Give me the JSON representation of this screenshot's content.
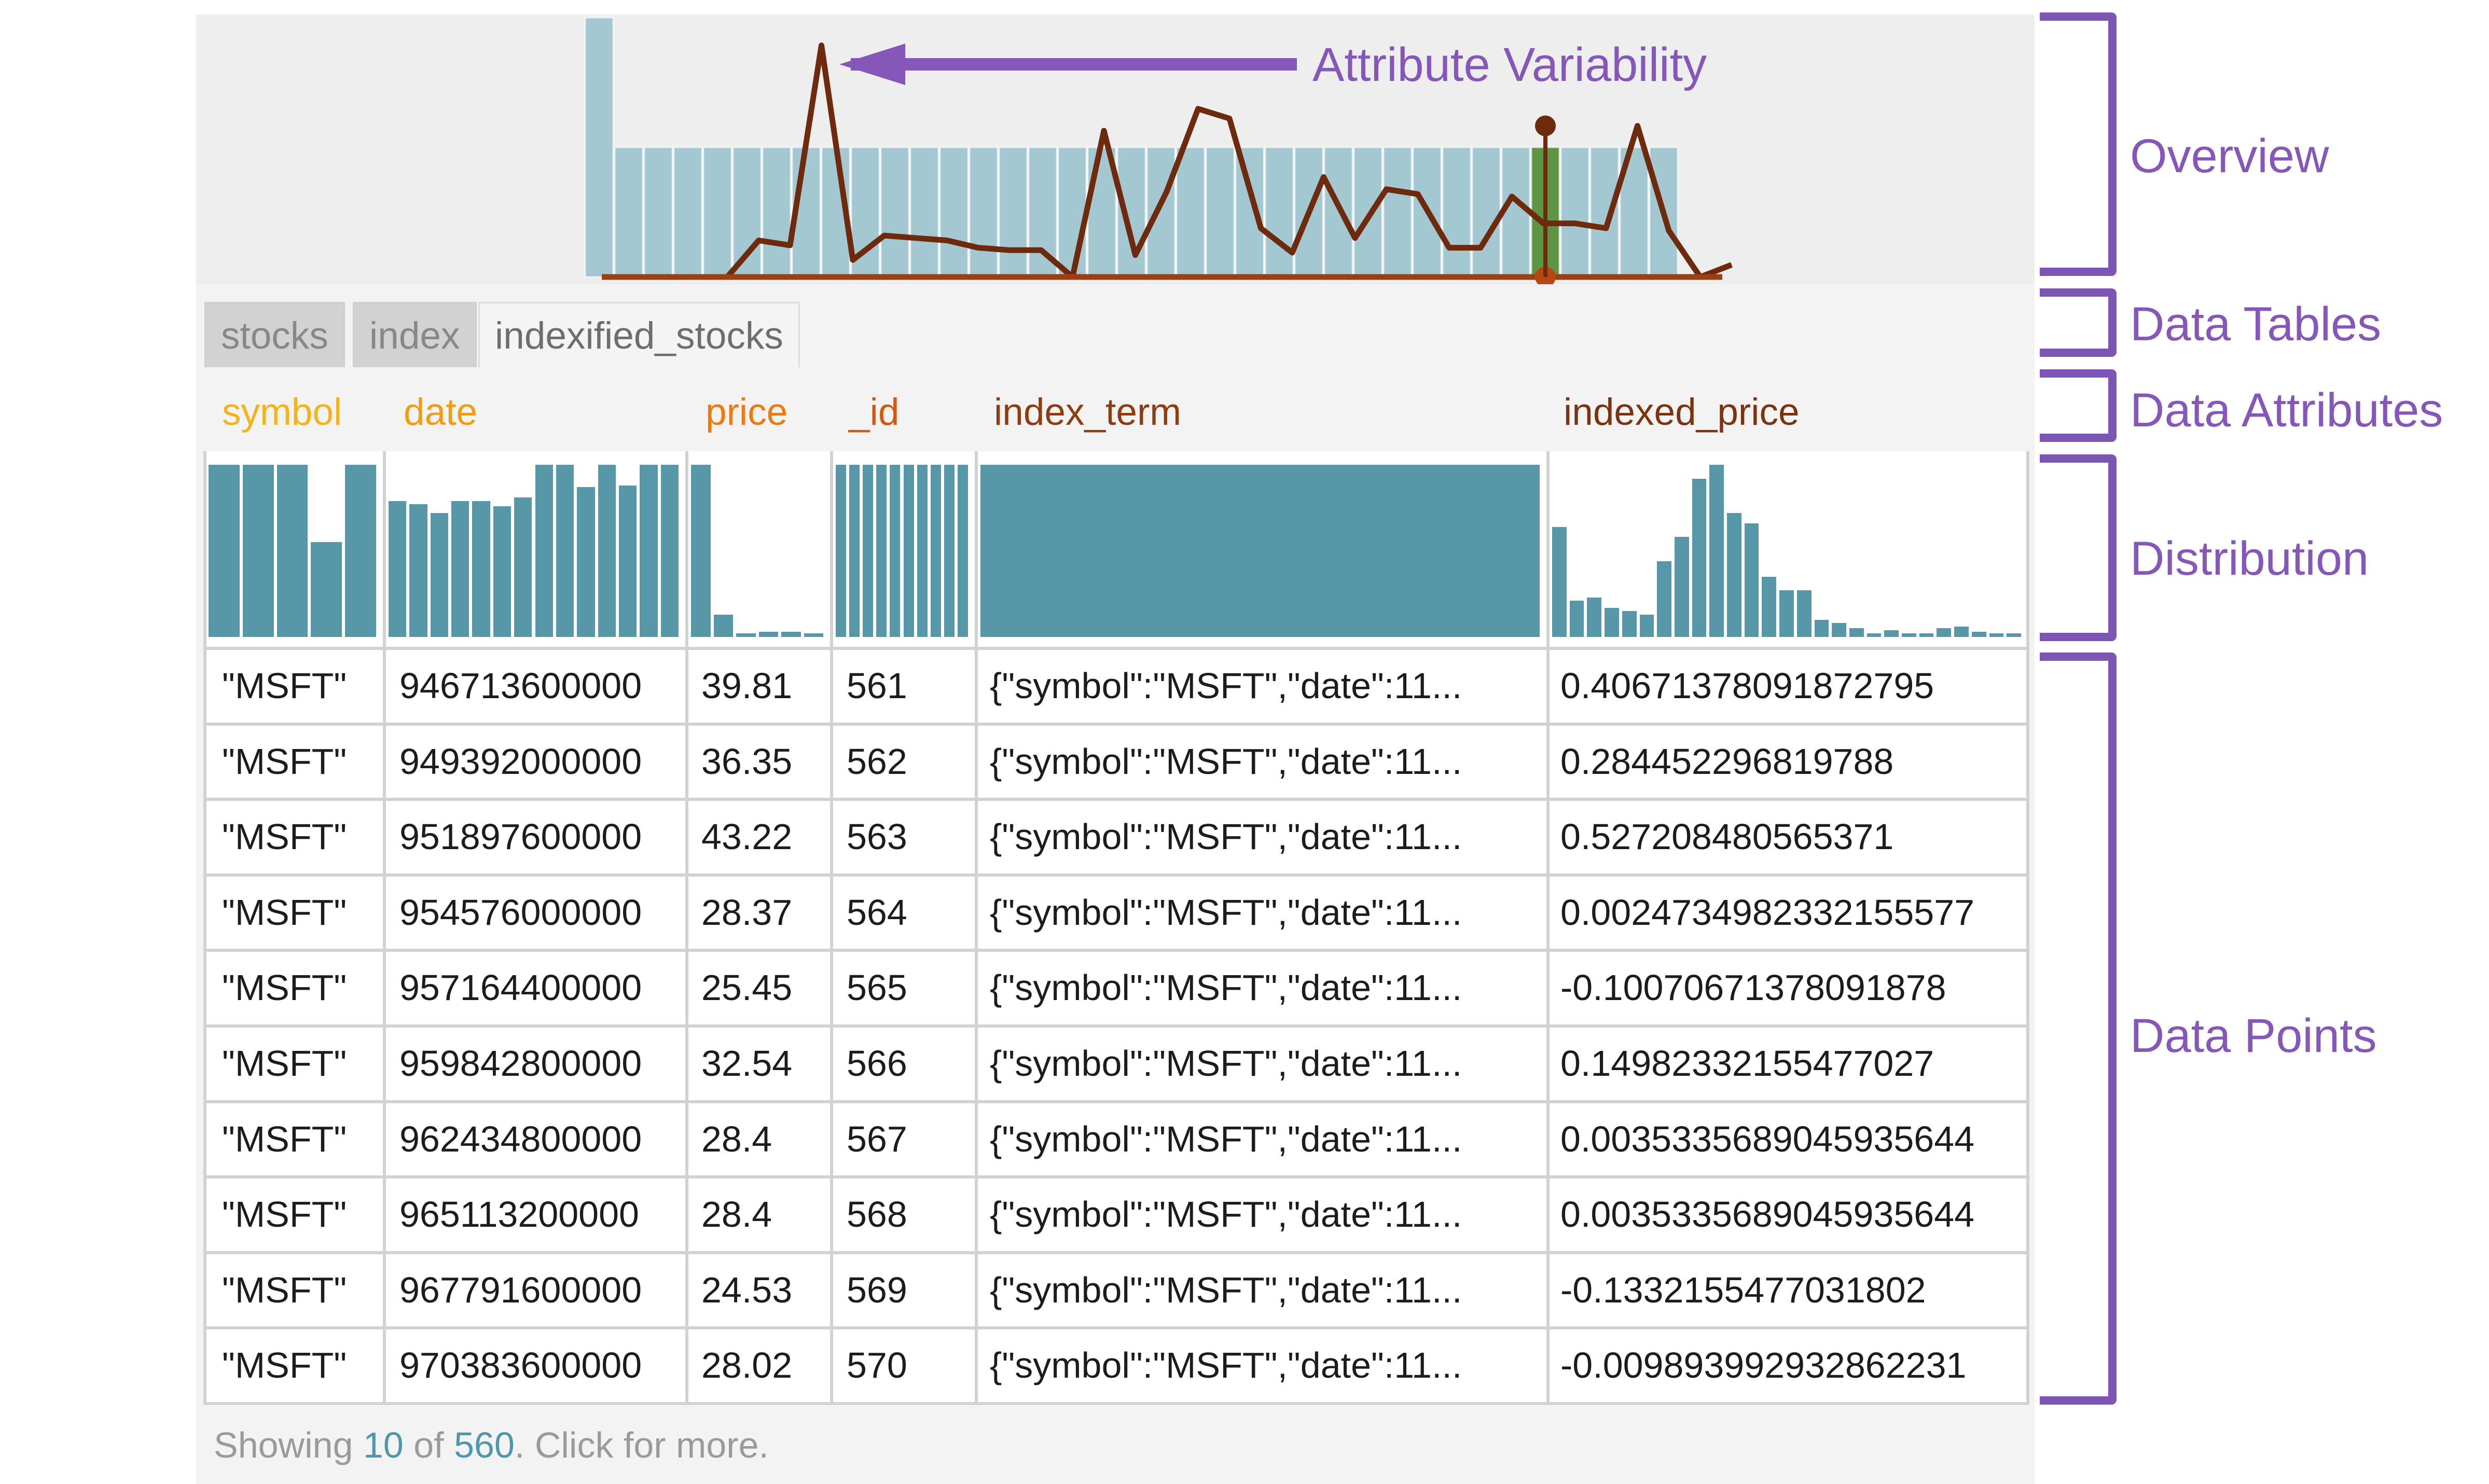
{
  "colors": {
    "accent": "#8457b9",
    "bar": "#5897a8",
    "overview_bar": "#a3c8d2",
    "line": "#6e2a0d",
    "highlight": "#5e9544",
    "attr_orange": "#f39c12",
    "attr_dark": "#a8470f"
  },
  "annotations": {
    "arrow_label": "Attribute Variability",
    "brackets": [
      "Overview",
      "Data Tables",
      "Data Attributes",
      "Distribution",
      "Data Points"
    ]
  },
  "tabs": [
    "stocks",
    "index",
    "indexified_stocks"
  ],
  "active_tab": 2,
  "columns": [
    {
      "name": "symbol",
      "color": "#f4b21b"
    },
    {
      "name": "date",
      "color": "#f39c12"
    },
    {
      "name": "price",
      "color": "#ee7a0f"
    },
    {
      "name": "_id",
      "color": "#d05a10"
    },
    {
      "name": "index_term",
      "color": "#8e3d10"
    },
    {
      "name": "indexed_price",
      "color": "#7a3410"
    }
  ],
  "distributions": [
    [
      1.0,
      1.0,
      1.0,
      0.55,
      1.0
    ],
    [
      0.79,
      0.77,
      0.72,
      0.79,
      0.79,
      0.76,
      0.81,
      1.0,
      1.0,
      0.87,
      1.0,
      0.88,
      1.0,
      1.0
    ],
    [
      1.0,
      0.13,
      0.02,
      0.03,
      0.03,
      0.02
    ],
    [
      1.0,
      1.0,
      1.0,
      1.0,
      1.0,
      1.0,
      1.0,
      1.0,
      1.0,
      1.0
    ],
    [
      1.0
    ],
    [
      0.64,
      0.21,
      0.23,
      0.17,
      0.15,
      0.13,
      0.44,
      0.58,
      0.92,
      1.0,
      0.72,
      0.66,
      0.35,
      0.27,
      0.27,
      0.1,
      0.08,
      0.05,
      0.02,
      0.04,
      0.02,
      0.02,
      0.05,
      0.06,
      0.03,
      0.02,
      0.02
    ]
  ],
  "rows": [
    [
      "\"MSFT\"",
      "946713600000",
      "39.81",
      "561",
      "{\"symbol\":\"MSFT\",\"date\":11...",
      "0.40671378091872795"
    ],
    [
      "\"MSFT\"",
      "949392000000",
      "36.35",
      "562",
      "{\"symbol\":\"MSFT\",\"date\":11...",
      "0.284452296819788"
    ],
    [
      "\"MSFT\"",
      "951897600000",
      "43.22",
      "563",
      "{\"symbol\":\"MSFT\",\"date\":11...",
      "0.527208480565371"
    ],
    [
      "\"MSFT\"",
      "954576000000",
      "28.37",
      "564",
      "{\"symbol\":\"MSFT\",\"date\":11...",
      "0.0024734982332155577"
    ],
    [
      "\"MSFT\"",
      "957164400000",
      "25.45",
      "565",
      "{\"symbol\":\"MSFT\",\"date\":11...",
      "-0.10070671378091878"
    ],
    [
      "\"MSFT\"",
      "959842800000",
      "32.54",
      "566",
      "{\"symbol\":\"MSFT\",\"date\":11...",
      "0.14982332155477027"
    ],
    [
      "\"MSFT\"",
      "962434800000",
      "28.4",
      "567",
      "{\"symbol\":\"MSFT\",\"date\":11...",
      "0.0035335689045935644"
    ],
    [
      "\"MSFT\"",
      "965113200000",
      "28.4",
      "568",
      "{\"symbol\":\"MSFT\",\"date\":11...",
      "0.0035335689045935644"
    ],
    [
      "\"MSFT\"",
      "967791600000",
      "24.53",
      "569",
      "{\"symbol\":\"MSFT\",\"date\":11...",
      "-0.1332155477031802"
    ],
    [
      "\"MSFT\"",
      "970383600000",
      "28.02",
      "570",
      "{\"symbol\":\"MSFT\",\"date\":11...",
      "-0.009893992932862231"
    ]
  ],
  "footer": {
    "prefix": "Showing ",
    "shown": "10",
    "middle": " of ",
    "total": "560",
    "suffix": ". Click for more."
  },
  "overview": {
    "first_bar_level": 1.0,
    "bar_level": 0.5,
    "bar_count": 36,
    "highlight_index": 32,
    "variability": [
      0,
      0,
      0,
      0,
      0.0,
      0.15,
      0.13,
      0.95,
      0.07,
      0.17,
      0.16,
      0.15,
      0.12,
      0.11,
      0.11,
      0.0,
      0.6,
      0.09,
      0.35,
      0.69,
      0.65,
      0.2,
      0.1,
      0.41,
      0.16,
      0.36,
      0.34,
      0.12,
      0.12,
      0.33,
      0.22,
      0.22,
      0.2,
      0.62,
      0.19,
      0.0,
      0.05
    ]
  }
}
